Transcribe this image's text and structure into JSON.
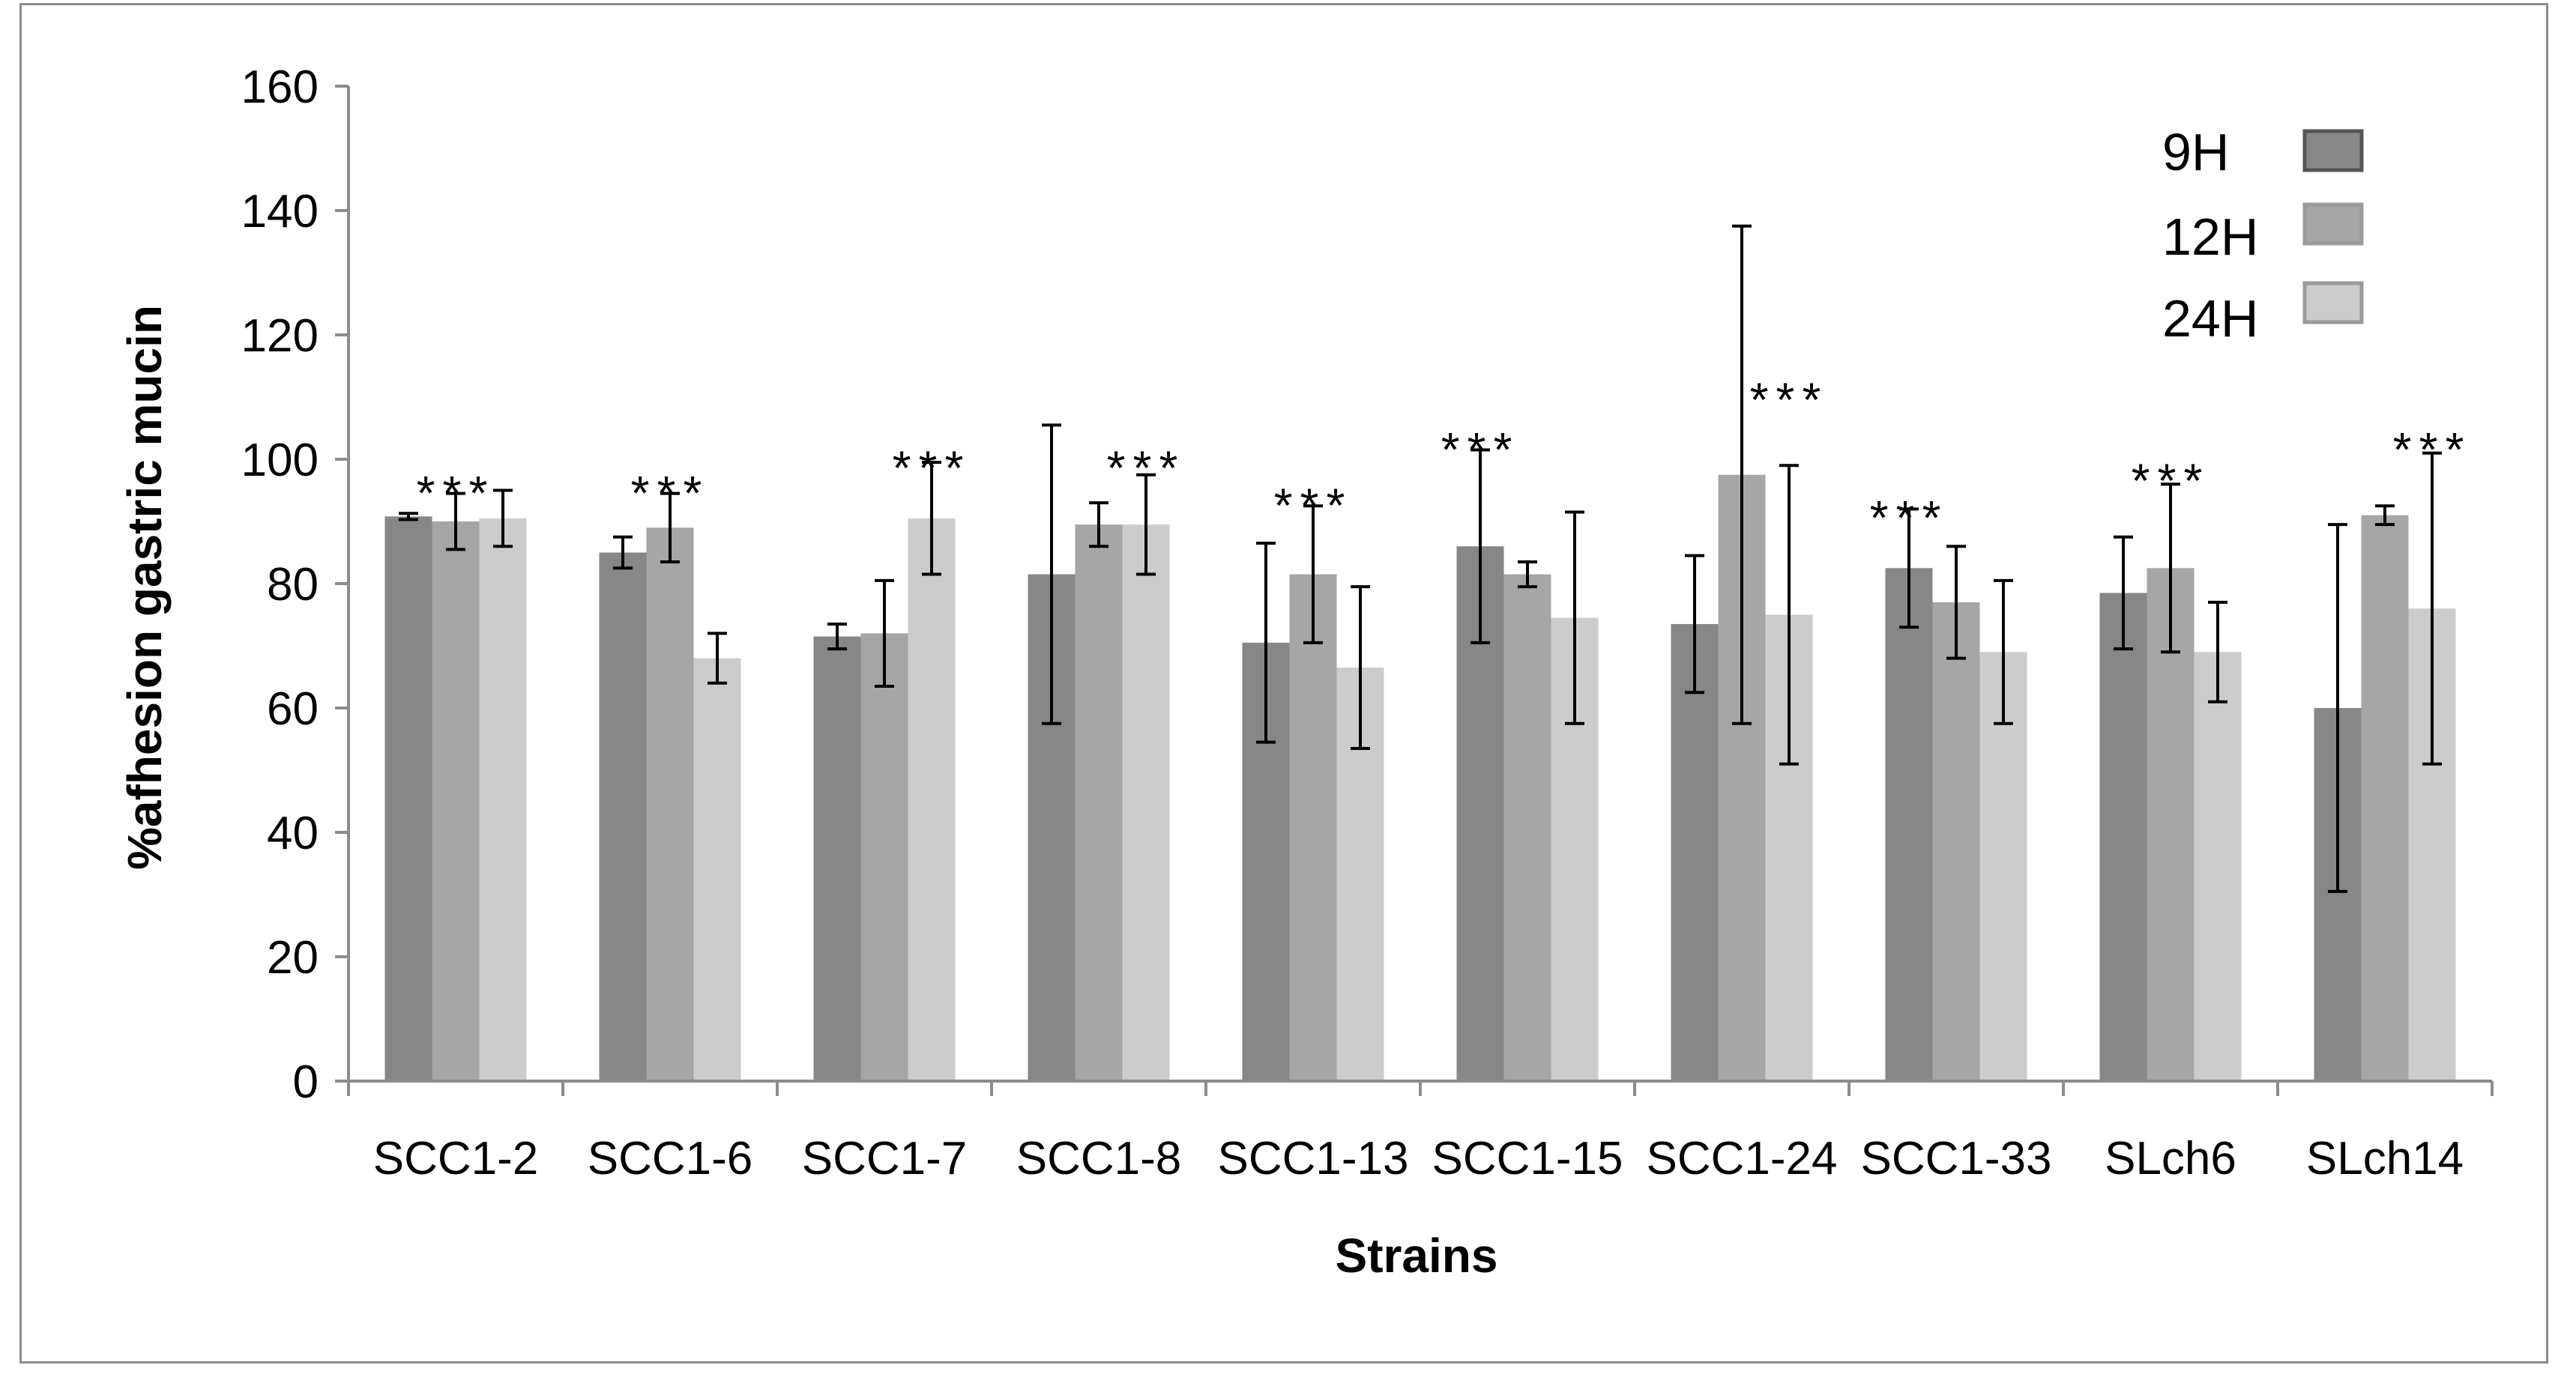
{
  "chart_data": {
    "type": "bar",
    "title": "",
    "xlabel": "Strains",
    "ylabel": "%afhesion gastric mucin",
    "ylim": [
      0,
      160
    ],
    "yticks": [
      "0",
      "20",
      "40",
      "60",
      "80",
      "100",
      "120",
      "140",
      "160"
    ],
    "grid": false,
    "legend_position": "top-right",
    "categories": [
      "SCC1-2",
      "SCC1-6",
      "SCC1-7",
      "SCC1-8",
      "SCC1-13",
      "SCC1-15",
      "SCC1-24",
      "SCC1-33",
      "SLch6",
      "SLch14"
    ],
    "series": [
      {
        "name": "9H",
        "color": "#878787",
        "values": [
          90.8,
          85,
          71.5,
          81.5,
          70.5,
          86,
          73.5,
          82.5,
          78.5,
          60
        ],
        "errors": [
          0.5,
          2.5,
          2,
          24,
          16,
          15.5,
          11,
          9.5,
          9,
          29.5
        ]
      },
      {
        "name": "12H",
        "color": "#a6a6a6",
        "values": [
          90,
          89,
          72,
          89.5,
          81.5,
          81.5,
          97.5,
          77,
          82.5,
          91
        ],
        "errors": [
          4.5,
          5.5,
          8.5,
          3.5,
          11,
          2,
          40,
          9,
          13.5,
          1.5
        ]
      },
      {
        "name": "24H",
        "color": "#cccccc",
        "values": [
          90.5,
          68,
          90.5,
          89.5,
          66.5,
          74.5,
          75,
          69,
          69,
          76
        ],
        "errors": [
          4.5,
          4,
          9,
          8,
          13,
          17,
          24,
          11.5,
          8,
          25
        ]
      }
    ],
    "annotations": [
      {
        "category": "SCC1-2",
        "series": "12H",
        "text": "***",
        "y": 97
      },
      {
        "category": "SCC1-6",
        "series": "12H",
        "text": "***",
        "y": 97
      },
      {
        "category": "SCC1-7",
        "series": "24H",
        "text": "***",
        "y": 101
      },
      {
        "category": "SCC1-8",
        "series": "24H",
        "text": "***",
        "y": 101
      },
      {
        "category": "SCC1-13",
        "series": "12H",
        "text": "***",
        "y": 95
      },
      {
        "category": "SCC1-15",
        "series": "9H",
        "text": "***",
        "y": 104
      },
      {
        "category": "SCC1-24",
        "series": "24H",
        "text": "***",
        "y": 112
      },
      {
        "category": "SCC1-33",
        "series": "9H",
        "text": "***",
        "y": 93
      },
      {
        "category": "SLch6",
        "series": "12H",
        "text": "***",
        "y": 99
      },
      {
        "category": "SLch14",
        "series": "24H",
        "text": "***",
        "y": 104
      }
    ]
  }
}
